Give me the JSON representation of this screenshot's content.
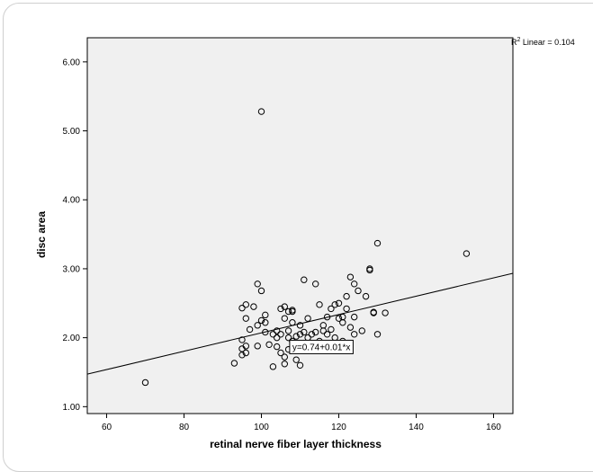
{
  "chart_data": {
    "type": "scatter",
    "xlabel": "retinal nerve fiber layer thickness",
    "ylabel": "disc area",
    "xlim": [
      55,
      165
    ],
    "ylim": [
      0.9,
      6.35
    ],
    "x_ticks": [
      60,
      80,
      100,
      120,
      140,
      160
    ],
    "y_ticks": [
      1.0,
      2.0,
      3.0,
      4.0,
      5.0,
      6.0
    ],
    "x_tick_labels": [
      "60",
      "80",
      "100",
      "120",
      "140",
      "160"
    ],
    "y_tick_labels": [
      "1.00",
      "2.00",
      "3.00",
      "4.00",
      "5.00",
      "6.00"
    ],
    "fit_line": {
      "intercept": 0.74,
      "slope": 0.0133,
      "equation": "y=0.74+0.01*x",
      "equation_anchor": [
        108,
        1.82
      ]
    },
    "r2_label": {
      "prefix": "R",
      "superscript": "2",
      "suffix": " Linear = 0.104"
    },
    "grid": false,
    "legend": "none",
    "colors": {
      "plot_bg": "#f0f0f0",
      "point_stroke": "#000000",
      "fit_line": "#000000"
    },
    "points": [
      [
        70,
        1.35
      ],
      [
        93,
        1.63
      ],
      [
        95,
        1.75
      ],
      [
        95,
        1.84
      ],
      [
        95,
        1.97
      ],
      [
        95,
        2.43
      ],
      [
        96,
        1.78
      ],
      [
        96,
        1.88
      ],
      [
        96,
        2.28
      ],
      [
        96,
        2.48
      ],
      [
        97,
        2.12
      ],
      [
        98,
        2.45
      ],
      [
        99,
        1.88
      ],
      [
        99,
        2.78
      ],
      [
        99,
        2.18
      ],
      [
        100,
        2.68
      ],
      [
        100,
        2.25
      ],
      [
        100,
        5.28
      ],
      [
        101,
        2.33
      ],
      [
        101,
        2.08
      ],
      [
        101,
        2.22
      ],
      [
        102,
        1.9
      ],
      [
        103,
        1.58
      ],
      [
        103,
        2.05
      ],
      [
        104,
        1.87
      ],
      [
        104,
        2.0
      ],
      [
        104,
        2.1
      ],
      [
        105,
        1.78
      ],
      [
        105,
        2.05
      ],
      [
        105,
        2.42
      ],
      [
        106,
        1.62
      ],
      [
        106,
        1.72
      ],
      [
        106,
        2.28
      ],
      [
        106,
        2.45
      ],
      [
        107,
        2.0
      ],
      [
        107,
        2.1
      ],
      [
        107,
        2.38
      ],
      [
        107,
        1.83
      ],
      [
        108,
        2.22
      ],
      [
        108,
        2.38
      ],
      [
        108,
        2.4
      ],
      [
        108,
        1.95
      ],
      [
        109,
        2.02
      ],
      [
        109,
        1.68
      ],
      [
        110,
        1.6
      ],
      [
        110,
        2.05
      ],
      [
        110,
        2.18
      ],
      [
        111,
        2.84
      ],
      [
        111,
        2.08
      ],
      [
        112,
        2.0
      ],
      [
        112,
        2.28
      ],
      [
        113,
        2.05
      ],
      [
        114,
        2.08
      ],
      [
        114,
        2.78
      ],
      [
        115,
        1.95
      ],
      [
        115,
        2.48
      ],
      [
        116,
        2.1
      ],
      [
        116,
        2.18
      ],
      [
        117,
        2.05
      ],
      [
        117,
        2.3
      ],
      [
        118,
        2.12
      ],
      [
        118,
        2.42
      ],
      [
        119,
        2.48
      ],
      [
        119,
        2.0
      ],
      [
        120,
        2.28
      ],
      [
        120,
        2.5
      ],
      [
        121,
        1.9
      ],
      [
        121,
        1.95
      ],
      [
        121,
        2.22
      ],
      [
        121,
        2.3
      ],
      [
        122,
        2.42
      ],
      [
        122,
        2.6
      ],
      [
        123,
        2.15
      ],
      [
        123,
        2.88
      ],
      [
        124,
        2.05
      ],
      [
        124,
        2.3
      ],
      [
        124,
        2.78
      ],
      [
        125,
        2.68
      ],
      [
        126,
        2.1
      ],
      [
        127,
        2.6
      ],
      [
        128,
        3.0
      ],
      [
        128,
        2.98
      ],
      [
        129,
        2.37
      ],
      [
        129,
        2.36
      ],
      [
        130,
        3.37
      ],
      [
        130,
        2.05
      ],
      [
        132,
        2.36
      ],
      [
        153,
        3.22
      ]
    ]
  }
}
